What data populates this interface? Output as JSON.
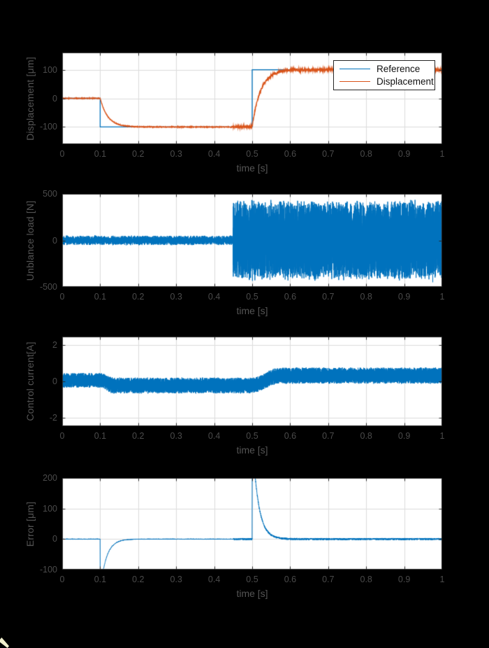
{
  "colors": {
    "figure_background": "#000000",
    "plot_background": "#ffffff",
    "grid": "#dcdcdc",
    "axis": "#262626",
    "tick_text": "#4b4b4b",
    "label_text": "#545454",
    "matlab_blue": "#0072BD",
    "matlab_orange": "#D95319",
    "legend_background": "#ffffff",
    "legend_border": "#262626",
    "legend_text": "#111111",
    "cursor_artifact": "#f1efcd"
  },
  "chart_data": [
    {
      "type": "line",
      "title": "",
      "xlabel": "time [s]",
      "ylabel": "Displacement [μm]",
      "xlim": [
        0,
        1
      ],
      "ylim": [
        -160,
        160
      ],
      "xticks": [
        0,
        0.1,
        0.2,
        0.3,
        0.4,
        0.5,
        0.6,
        0.7,
        0.8,
        0.9,
        1
      ],
      "xtick_labels": [
        "0",
        "0.1",
        "0.2",
        "0.3",
        "0.4",
        "0.5",
        "0.6",
        "0.7",
        "0.8",
        "0.9",
        "1"
      ],
      "yticks": [
        -100,
        0,
        100
      ],
      "ytick_labels": [
        "-100",
        "0",
        "100"
      ],
      "grid": true,
      "legend": {
        "position": "northeast",
        "entries": [
          "Reference",
          "Displacement"
        ]
      },
      "series": [
        {
          "name": "Reference",
          "color": "#0072BD",
          "kind": "step",
          "steps": [
            [
              0,
              0
            ],
            [
              0.1,
              -100
            ],
            [
              0.5,
              100
            ]
          ]
        },
        {
          "name": "Displacement",
          "color": "#D95319",
          "kind": "tracking",
          "initial": 0,
          "responses": [
            {
              "t": 0.1,
              "target": -100,
              "tau": 0.02
            },
            {
              "t": 0.5,
              "target": 100,
              "tau": 0.022
            }
          ],
          "noise_amp": 1.1,
          "ripple": {
            "start": 0.45,
            "amp": 3.2
          }
        }
      ]
    },
    {
      "type": "line",
      "title": "",
      "xlabel": "time [s]",
      "ylabel": "Unblance load [N]",
      "xlim": [
        0,
        1
      ],
      "ylim": [
        -500,
        500
      ],
      "xticks": [
        0,
        0.1,
        0.2,
        0.3,
        0.4,
        0.5,
        0.6,
        0.7,
        0.8,
        0.9,
        1
      ],
      "xtick_labels": [
        "0",
        "0.1",
        "0.2",
        "0.3",
        "0.4",
        "0.5",
        "0.6",
        "0.7",
        "0.8",
        "0.9",
        "1"
      ],
      "yticks": [
        -500,
        0,
        500
      ],
      "ytick_labels": [
        "-500",
        "0",
        "500"
      ],
      "grid": true,
      "legend": null,
      "series": [
        {
          "name": "Unbalance load",
          "color": "#0072BD",
          "kind": "noise",
          "segments": [
            {
              "t0": 0,
              "t1": 0.45,
              "amp": 52
            },
            {
              "t0": 0.45,
              "t1": 1,
              "amp": 430
            }
          ]
        }
      ]
    },
    {
      "type": "line",
      "title": "",
      "xlabel": "time [s]",
      "ylabel": "Control current[A]",
      "xlim": [
        0,
        1
      ],
      "ylim": [
        -2.45,
        2.45
      ],
      "xticks": [
        0,
        0.1,
        0.2,
        0.3,
        0.4,
        0.5,
        0.6,
        0.7,
        0.8,
        0.9,
        1
      ],
      "xtick_labels": [
        "0",
        "0.1",
        "0.2",
        "0.3",
        "0.4",
        "0.5",
        "0.6",
        "0.7",
        "0.8",
        "0.9",
        "1"
      ],
      "yticks": [
        -2,
        0,
        2
      ],
      "ytick_labels": [
        "-2",
        "0",
        "2"
      ],
      "grid": true,
      "legend": null,
      "series": [
        {
          "name": "Control current",
          "color": "#0072BD",
          "kind": "band",
          "segments": [
            {
              "t0": 0,
              "t1": 0.1,
              "lo": -0.33,
              "hi": 0.45
            },
            {
              "t0": 0.1,
              "t1": 0.5,
              "lo": -0.65,
              "hi": 0.2
            },
            {
              "t0": 0.5,
              "t1": 1,
              "lo": -0.12,
              "hi": 0.75
            }
          ],
          "transitions": [
            {
              "t": 0.1,
              "width": 0.035
            },
            {
              "t": 0.5,
              "width": 0.07
            }
          ]
        }
      ]
    },
    {
      "type": "line",
      "title": "",
      "xlabel": "time [s]",
      "ylabel": "Error [μm]",
      "xlim": [
        0,
        1
      ],
      "ylim": [
        -100,
        200
      ],
      "xticks": [
        0,
        0.1,
        0.2,
        0.3,
        0.4,
        0.5,
        0.6,
        0.7,
        0.8,
        0.9,
        1
      ],
      "xtick_labels": [
        "0",
        "0.1",
        "0.2",
        "0.3",
        "0.4",
        "0.5",
        "0.6",
        "0.7",
        "0.8",
        "0.9",
        "1"
      ],
      "yticks": [
        -100,
        0,
        100,
        200
      ],
      "ytick_labels": [
        "-100",
        "0",
        "100",
        "200"
      ],
      "grid": true,
      "legend": null,
      "series": [
        {
          "name": "Error",
          "color": "#0072BD",
          "kind": "spiky",
          "baseline": 0,
          "events": [
            {
              "t": 0.1,
              "peak": -170,
              "tau": 0.016
            },
            {
              "t": 0.5,
              "peak": 340,
              "tau": 0.0155
            }
          ],
          "noise": [
            {
              "t0": 0,
              "t1": 0.45,
              "amp": 1.2
            },
            {
              "t0": 0.45,
              "t1": 1,
              "amp": 3.2
            }
          ]
        }
      ]
    }
  ]
}
